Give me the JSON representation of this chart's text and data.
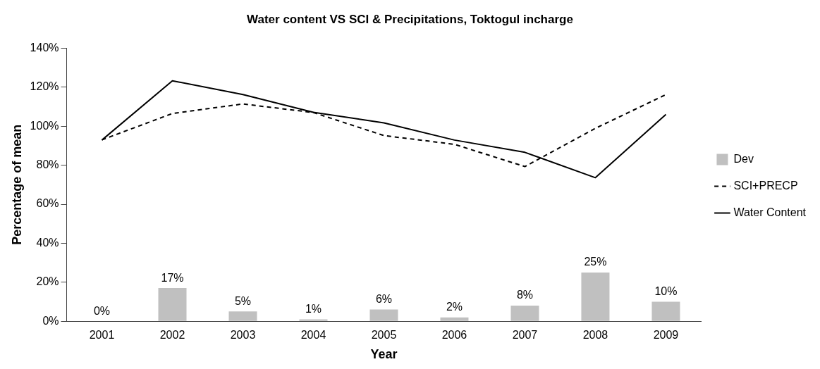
{
  "chart_data": {
    "type": "bar",
    "title": "Water content VS SCI & Precipitations, Toktogul incharge",
    "xlabel": "Year",
    "ylabel": "Percentage of mean",
    "categories": [
      "2001",
      "2002",
      "2003",
      "2004",
      "2005",
      "2006",
      "2007",
      "2008",
      "2009"
    ],
    "series": [
      {
        "name": "Dev",
        "color": "#c0c0c0",
        "values": [
          0,
          17,
          5,
          1,
          6,
          2,
          8,
          25,
          10
        ],
        "value_labels": [
          "0%",
          "17%",
          "5%",
          "1%",
          "6%",
          "2%",
          "8%",
          "25%",
          "10%"
        ]
      },
      {
        "name": "SCI+PRECP",
        "type": "line",
        "color": "#000000",
        "line_style": "dashed",
        "values": [
          93,
          106.5,
          111.4,
          107,
          95.2,
          90.7,
          79.3,
          98.9,
          116.2
        ]
      },
      {
        "name": "Water Content",
        "type": "line",
        "color": "#000000",
        "line_style": "solid",
        "values": [
          92.9,
          123.3,
          116.2,
          107.1,
          101.7,
          92.9,
          86.6,
          73.6,
          106
        ]
      }
    ],
    "ylim": [
      0,
      140
    ],
    "yticks": [
      {
        "value": 0,
        "label": "0%"
      },
      {
        "value": 20,
        "label": "20%"
      },
      {
        "value": 40,
        "label": "40%"
      },
      {
        "value": 60,
        "label": "60%"
      },
      {
        "value": 80,
        "label": "80%"
      },
      {
        "value": 100,
        "label": "100%"
      },
      {
        "value": 120,
        "label": "120%"
      },
      {
        "value": 140,
        "label": "140%"
      }
    ],
    "grid": false,
    "legend": "right",
    "marker": "none"
  }
}
